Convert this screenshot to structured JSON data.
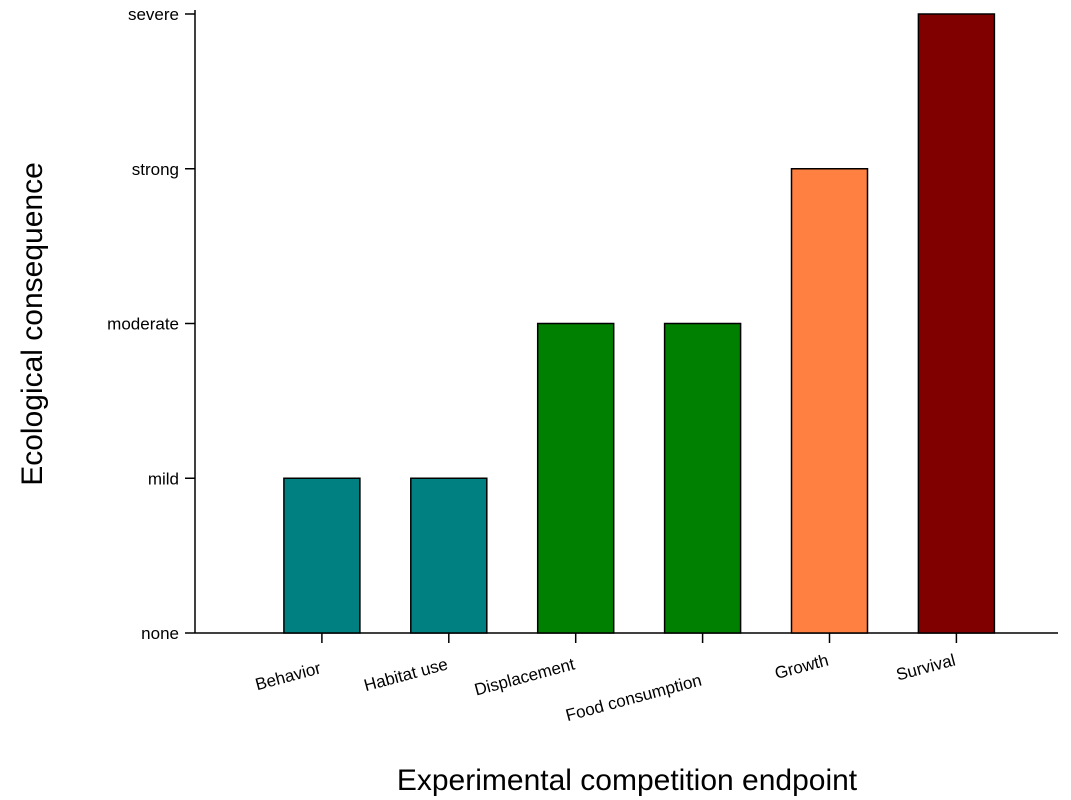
{
  "chart_data": {
    "type": "bar",
    "x_label": "Experimental competition endpoint",
    "y_label": "Ecological consequence",
    "categories": [
      "Behavior",
      "Habitat use",
      "Displacement",
      "Food consumption",
      "Growth",
      "Survival"
    ],
    "values": [
      1,
      1,
      2,
      2,
      3,
      4
    ],
    "colors": [
      "#008080",
      "#008080",
      "#008000",
      "#008000",
      "#ff8040",
      "#800000"
    ],
    "ylim": [
      0,
      4
    ],
    "yticks": [
      {
        "value": 0,
        "label": "none"
      },
      {
        "value": 1,
        "label": "mild"
      },
      {
        "value": 2,
        "label": "moderate"
      },
      {
        "value": 3,
        "label": "strong"
      },
      {
        "value": 4,
        "label": "severe"
      }
    ],
    "grid": false
  }
}
